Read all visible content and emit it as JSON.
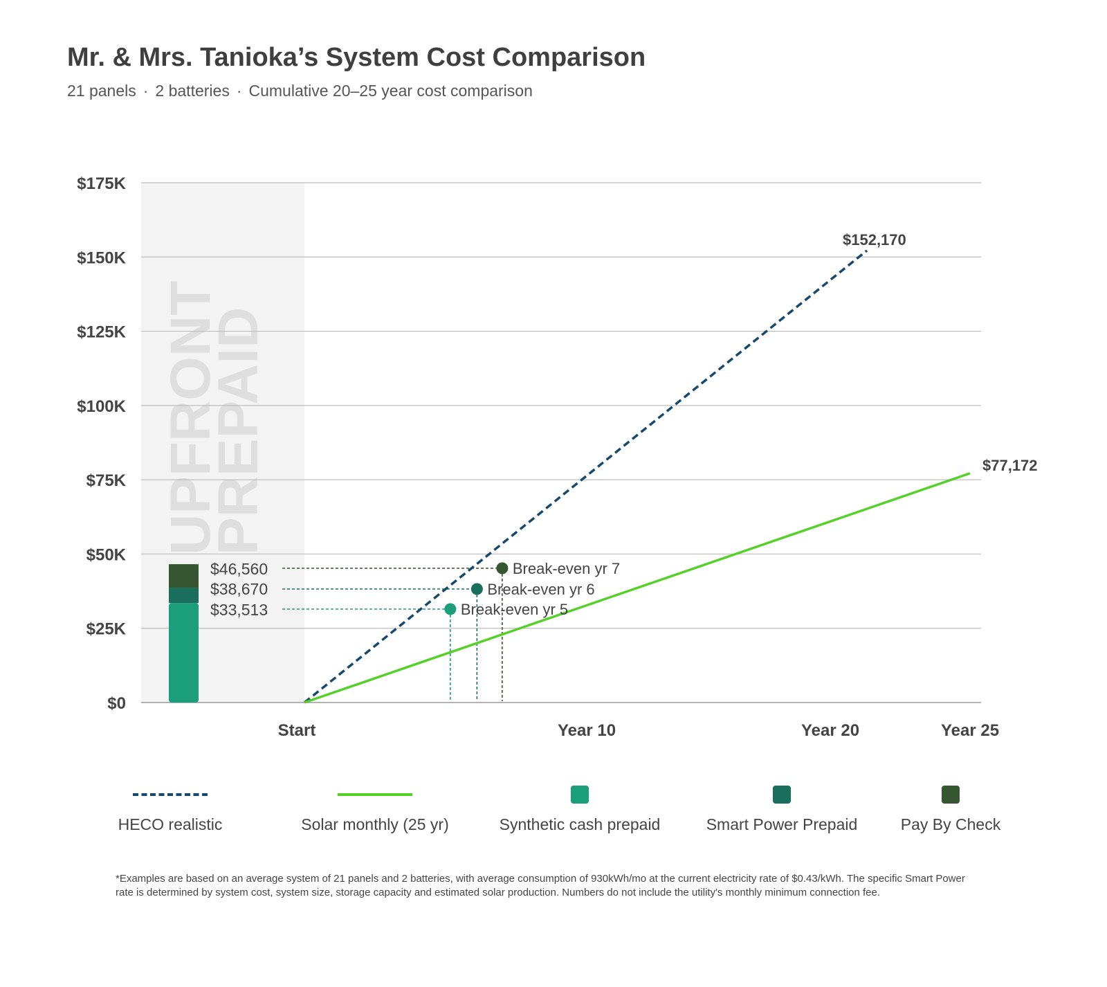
{
  "header": {
    "title": "Mr. & Mrs. Tanioka’s System Cost Comparison",
    "subtitle_parts": [
      "21 panels",
      "2 batteries",
      "Cumulative 20–25 year cost comparison"
    ],
    "separator": "·"
  },
  "chart_data": {
    "type": "line",
    "y_ticks": [
      "$175K",
      "$150K",
      "$125K",
      "$100K",
      "$75K",
      "$50K",
      "$25K",
      "$0"
    ],
    "y_tick_values": [
      175000,
      150000,
      125000,
      100000,
      75000,
      50000,
      25000,
      0
    ],
    "ylim": [
      0,
      175000
    ],
    "x_ticks": [
      {
        "label": "Start",
        "year": 0
      },
      {
        "label": "Year 10",
        "year": 10
      },
      {
        "label": "Year 20",
        "year": 20
      },
      {
        "label": "Year 25",
        "year": 25
      }
    ],
    "upfront_band_label_1": "UPFRONT",
    "upfront_band_label_2": "PREPAID",
    "series": [
      {
        "name": "HECO realistic",
        "style": "dashed",
        "color": "#17496e",
        "x": [
          0,
          20
        ],
        "y": [
          0,
          152170
        ],
        "end_label": "$152,170"
      },
      {
        "name": "Solar monthly (25 yr)",
        "style": "solid",
        "color": "#55d12a",
        "x": [
          0,
          25
        ],
        "y": [
          0,
          77172
        ],
        "end_label": "$77,172"
      }
    ],
    "prepaid_bar": [
      {
        "name": "Synthetic cash prepaid",
        "value": 33513,
        "label": "$33,513",
        "color": "#1b9e7a",
        "breakeven_year": 5.2,
        "breakeven_label": "Break-even yr 5"
      },
      {
        "name": "Smart Power Prepaid",
        "value": 38670,
        "label": "$38,670",
        "color": "#1a6e5c",
        "breakeven_year": 6.15,
        "breakeven_label": "Break-even yr 6"
      },
      {
        "name": "Pay By Check",
        "value": 46560,
        "label": "$46,560",
        "color": "#355630",
        "breakeven_year": 7.05,
        "breakeven_label": "Break-even yr 7"
      }
    ],
    "grid": true
  },
  "legend": [
    {
      "label": "HECO realistic",
      "kind": "dashed",
      "color": "#17496e"
    },
    {
      "label": "Solar monthly (25 yr)",
      "kind": "line",
      "color": "#55d12a"
    },
    {
      "label": "Synthetic cash prepaid",
      "kind": "square",
      "color": "#1b9e7a"
    },
    {
      "label": "Smart Power Prepaid",
      "kind": "square",
      "color": "#1a6e5c"
    },
    {
      "label": "Pay By Check",
      "kind": "square",
      "color": "#355630"
    }
  ],
  "footnote": "*Examples are based on an average system of 21 panels and 2 batteries, with average consumption of 930kWh/mo at the current electricity rate of $0.43/kWh. The specific Smart Power rate is determined by system cost, system size, storage capacity and estimated solar production. Numbers do not include the utility's monthly minimum connection fee."
}
